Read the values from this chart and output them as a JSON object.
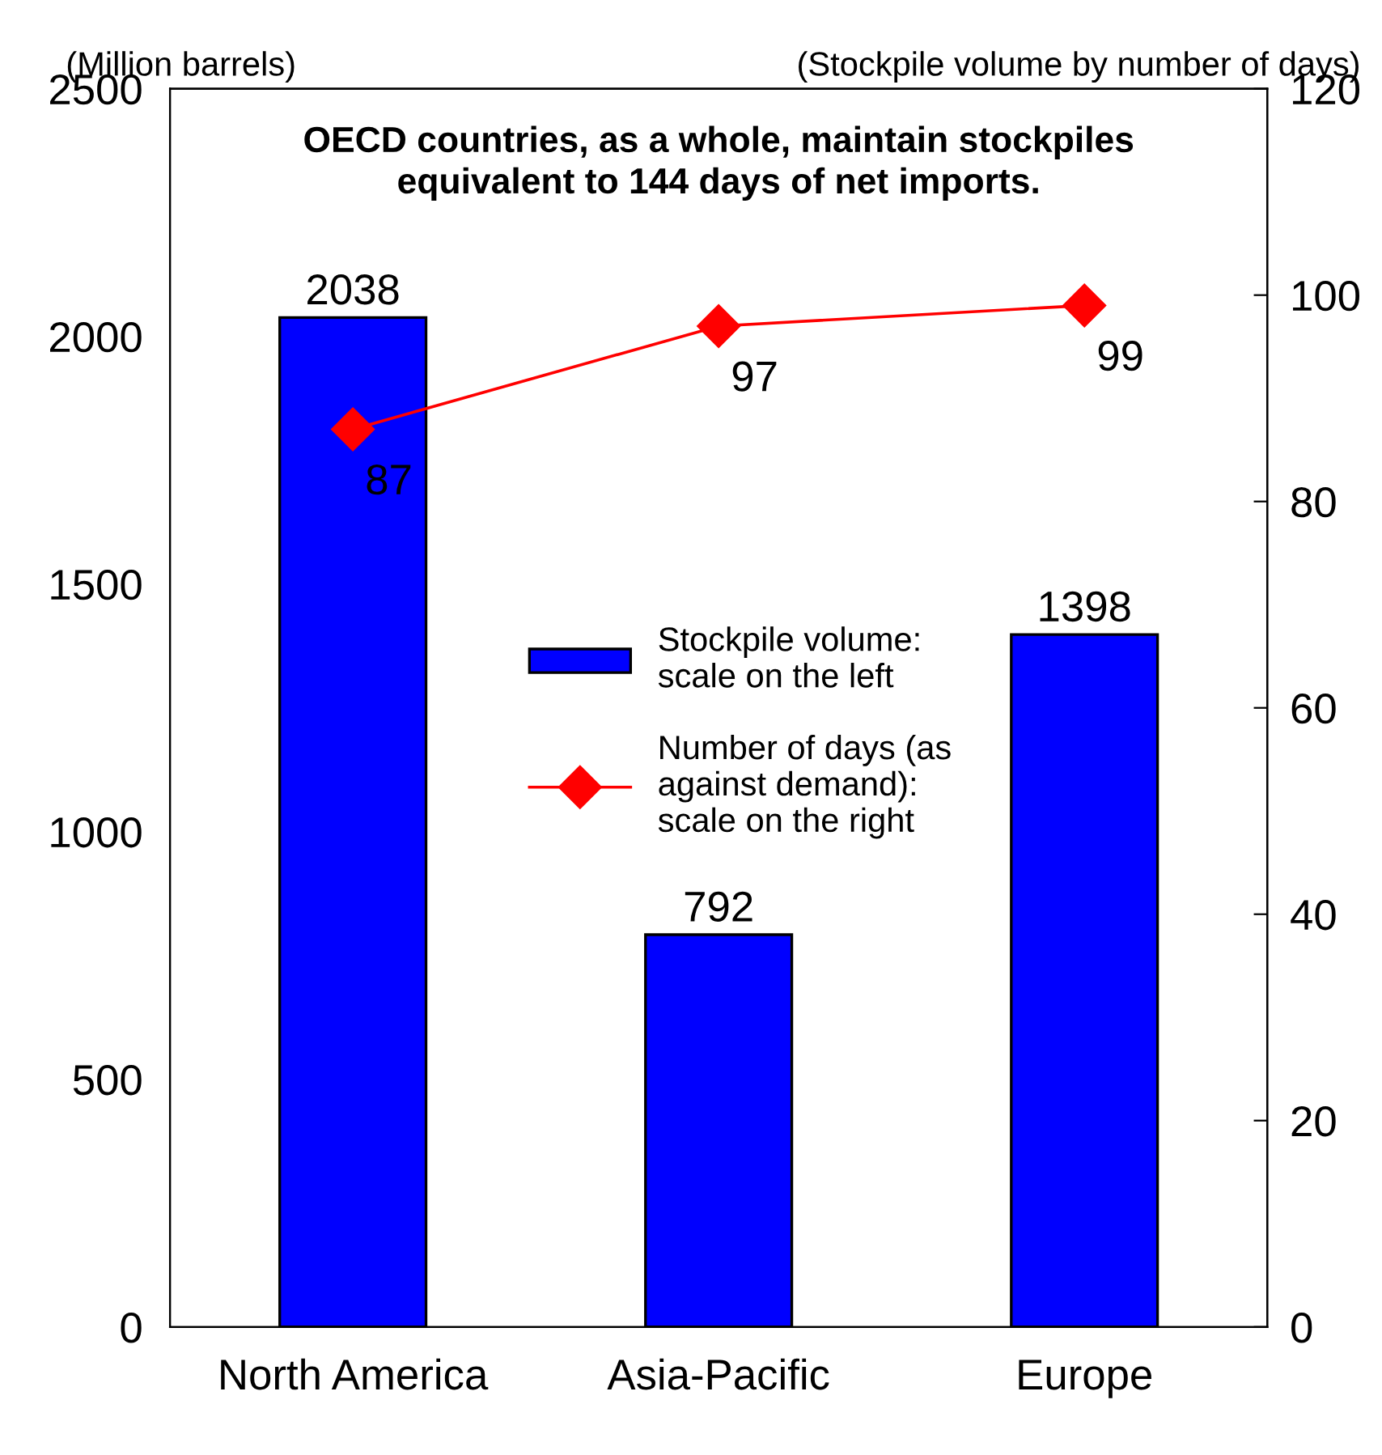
{
  "chart_data": {
    "type": "bar",
    "title": "OECD countries, as a whole, maintain stockpiles\nequivalent to 144 days of net imports.",
    "categories": [
      "North America",
      "Asia-Pacific",
      "Europe"
    ],
    "series": [
      {
        "name": "Stockpile volume:\nscale on the left",
        "color": "#0000ff",
        "values": [
          2038,
          792,
          1398
        ]
      },
      {
        "name": "Number of days (as\nagainst demand):\nscale on the right",
        "type": "line",
        "axis": "y2",
        "color": "#ff0000",
        "marker": "diamond",
        "values": [
          87,
          97,
          99
        ]
      }
    ],
    "ylabel": "(Million barrels)",
    "y2label": "(Stockpile volume by number of days)",
    "ylim": [
      0,
      2500
    ],
    "yticks": [
      0,
      500,
      1000,
      1500,
      2000,
      2500
    ],
    "y2lim": [
      0,
      120
    ],
    "y2ticks": [
      0,
      20,
      40,
      60,
      80,
      100,
      120
    ],
    "data_labels": true,
    "legend": "center",
    "grid": false
  }
}
